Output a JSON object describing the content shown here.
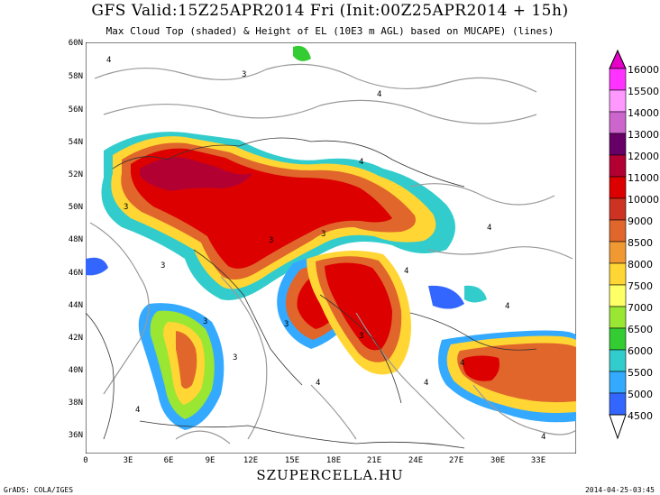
{
  "title": "GFS Valid:15Z25APR2014 Fri (Init:00Z25APR2014 + 15h)",
  "subtitle": "Max Cloud Top (shaded) & Height of EL (10E3 m AGL) based on MUCAPE) (lines)",
  "footer": "SZUPERCELLA.HU",
  "credit": "GrADS: COLA/IGES",
  "timestamp": "2014-04-25-03:45",
  "lat_labels": [
    "60N",
    "58N",
    "56N",
    "54N",
    "52N",
    "50N",
    "48N",
    "46N",
    "44N",
    "42N",
    "40N",
    "38N",
    "36N"
  ],
  "lon_labels": [
    "0",
    "3E",
    "6E",
    "9E",
    "12E",
    "15E",
    "18E",
    "21E",
    "24E",
    "27E",
    "30E",
    "33E"
  ],
  "colorbar": {
    "labels": [
      "16000",
      "15500",
      "14000",
      "13000",
      "12000",
      "11000",
      "10000",
      "9000",
      "8500",
      "8000",
      "7500",
      "7000",
      "6500",
      "6000",
      "5500",
      "5000",
      "4500"
    ],
    "colors": [
      "#e600c8",
      "#ff33ff",
      "#ff99ff",
      "#cc66cc",
      "#660066",
      "#b30033",
      "#dd0000",
      "#cc3322",
      "#e0662b",
      "#f09933",
      "#ffd633",
      "#ffff66",
      "#99e633",
      "#33cc33",
      "#33cccc",
      "#33aaff",
      "#3366ff",
      "#0000cc"
    ]
  },
  "contour_labels": [
    "4",
    "3",
    "4",
    "3",
    "4",
    "3",
    "3",
    "4",
    "4",
    "3",
    "4",
    "3",
    "4",
    "4",
    "3",
    "4",
    "4",
    "3",
    "4",
    "3"
  ]
}
